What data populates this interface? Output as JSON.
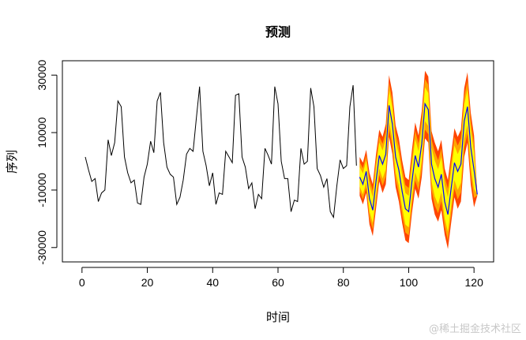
{
  "chart_data": {
    "type": "line",
    "title": "预测",
    "xlabel": "时间",
    "ylabel": "序列",
    "xlim": [
      -6,
      126
    ],
    "ylim": [
      -35000,
      35000
    ],
    "x_ticks": [
      0,
      20,
      40,
      60,
      80,
      100,
      120
    ],
    "y_ticks": [
      -30000,
      -10000,
      10000,
      30000
    ],
    "grid": false,
    "series": [
      {
        "color": "#000000",
        "x": [
          1,
          2,
          3,
          4,
          5,
          6,
          7,
          8,
          9,
          10,
          11,
          12,
          13,
          14,
          15,
          16,
          17,
          18,
          19,
          20,
          21,
          22,
          23,
          24,
          25,
          26,
          27,
          28,
          29,
          30,
          31,
          32,
          33,
          34,
          35,
          36,
          37,
          38,
          39,
          40,
          41,
          42,
          43,
          44,
          45,
          46,
          47,
          48,
          49,
          50,
          51,
          52,
          53,
          54,
          55,
          56,
          57,
          58,
          59,
          60,
          61,
          62,
          63,
          64,
          65,
          66,
          67,
          68,
          69,
          70,
          71,
          72,
          73,
          74,
          75,
          76,
          77,
          78,
          79,
          80,
          81,
          82,
          83,
          84
        ],
        "values": [
          1500,
          -3000,
          -7000,
          -6000,
          -14000,
          -11000,
          -10000,
          7500,
          2000,
          6500,
          21000,
          19000,
          1500,
          -4000,
          -7500,
          -6500,
          -14500,
          -15000,
          -5500,
          -1000,
          7000,
          3000,
          21000,
          24000,
          6500,
          -2000,
          -4500,
          -5500,
          -15000,
          -12500,
          -6500,
          2500,
          4500,
          3500,
          15000,
          26000,
          3500,
          -1500,
          -8500,
          -4000,
          -15000,
          -11000,
          -11500,
          3500,
          1500,
          -500,
          23000,
          23500,
          1500,
          -2000,
          -9500,
          -7500,
          -16500,
          -11500,
          -13000,
          4500,
          2000,
          -1000,
          26000,
          20000,
          0,
          -6000,
          -6000,
          -17500,
          -13500,
          -14000,
          4500,
          -1000,
          0,
          25500,
          19000,
          -2500,
          -5000,
          -9000,
          -6000,
          -17500,
          -19500,
          -8500,
          500,
          -2500,
          -1500,
          19000,
          26500,
          -1500
        ]
      },
      {
        "name": "预测",
        "color": "#0000ff",
        "x": [
          85,
          86,
          87,
          88,
          89,
          90,
          91,
          92,
          93,
          94,
          95,
          96,
          97,
          98,
          99,
          100,
          101,
          102,
          103,
          104,
          105,
          106,
          107,
          108,
          109,
          110,
          111,
          112,
          113,
          114,
          115,
          116,
          117,
          118,
          119,
          120,
          121
        ],
        "mean": [
          -5500,
          -8000,
          -3500,
          -13000,
          -17000,
          -7000,
          2000,
          -1000,
          2500,
          19500,
          13000,
          1500,
          -3000,
          -10500,
          -16500,
          -17500,
          -7000,
          2000,
          -2000,
          6000,
          20000,
          18000,
          -1000,
          -6000,
          -9000,
          -4500,
          -14000,
          -18500,
          -9500,
          -500,
          -3500,
          -1000,
          14000,
          19000,
          5000,
          -3000,
          -11500
        ],
        "lo95": [
          -12000,
          -15000,
          -11000,
          -22000,
          -26000,
          -16500,
          -7000,
          -11000,
          -8000,
          8500,
          2500,
          -9000,
          -14000,
          -21500,
          -27500,
          -28500,
          -18000,
          -9500,
          -13000,
          -5500,
          8000,
          6500,
          -13000,
          -18500,
          -21000,
          -17000,
          -25500,
          -30500,
          -21500,
          -12500,
          -16500,
          -14000,
          1500,
          6500,
          -8000,
          -16000,
          -12000
        ],
        "hi95": [
          1500,
          -500,
          4000,
          -4000,
          -8000,
          2500,
          11000,
          8500,
          13000,
          30000,
          24000,
          12500,
          8000,
          300,
          -5500,
          -6500,
          4000,
          13500,
          9000,
          17500,
          31500,
          29500,
          10500,
          6500,
          3500,
          7500,
          -2500,
          -6500,
          2500,
          11500,
          8500,
          11000,
          25500,
          31000,
          17000,
          9000,
          -11000
        ],
        "band_colors": {
          "outer": "#ff4500",
          "mid": "#ffa500",
          "inner": "#ffff00"
        }
      }
    ]
  },
  "watermark": "@稀土掘金技术社区"
}
